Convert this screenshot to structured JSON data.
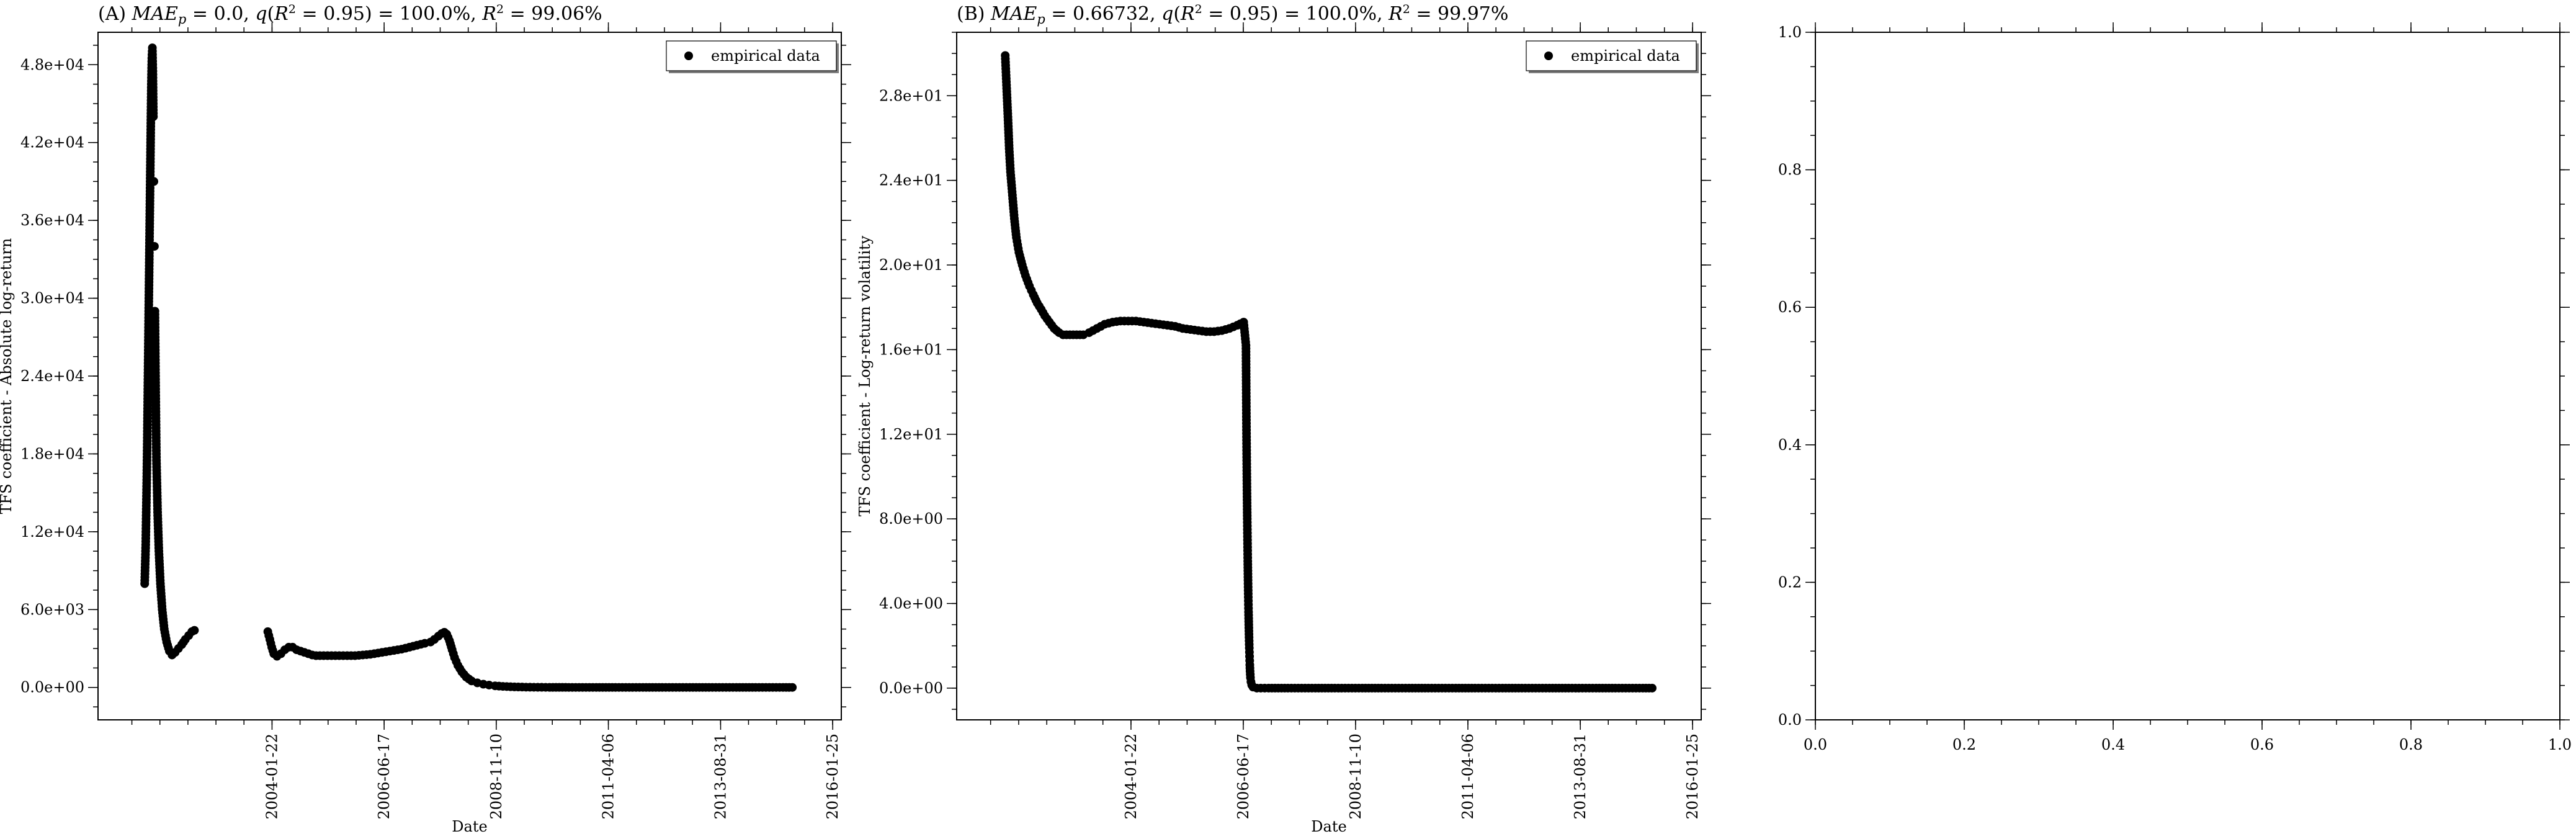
{
  "chart_data": [
    {
      "type": "scatter",
      "title": "(A) MAE_p = 0.0, q(R^2 = 0.95) = 100.0%, R^2 = 99.06%",
      "title_parts": [
        "(A) ",
        "MAE",
        "p",
        " = 0.0, ",
        "q",
        "(",
        "R",
        "2",
        " = 0.95) = 100.0%, ",
        "R",
        "2",
        " = 99.06%"
      ],
      "xlabel": "Date",
      "ylabel": "TFS coefficient - Absolute log-return",
      "x_axis": "date",
      "xlim": [
        "2000-05-01",
        "2016-04-01"
      ],
      "ylim": [
        -2500,
        50500
      ],
      "xticks": [
        "2004-01-22",
        "2006-06-17",
        "2008-11-10",
        "2011-04-06",
        "2013-08-31",
        "2016-01-25"
      ],
      "yticks": [
        0,
        6000,
        12000,
        18000,
        24000,
        30000,
        36000,
        42000,
        48000
      ],
      "ytick_labels": [
        "0.0e+00",
        "6.0e+03",
        "1.2e+04",
        "1.8e+04",
        "2.4e+04",
        "3.0e+04",
        "3.6e+04",
        "4.2e+04",
        "4.8e+04"
      ],
      "legend": {
        "label": "empirical data",
        "position": "top-right"
      },
      "grid": false,
      "series": [
        {
          "name": "empirical data",
          "color": "#000000",
          "points": [
            [
              "2001-05-01",
              8000
            ],
            [
              "2001-05-05",
              9500
            ],
            [
              "2001-05-09",
              11000
            ],
            [
              "2001-05-13",
              13500
            ],
            [
              "2001-05-17",
              16000
            ],
            [
              "2001-05-21",
              19000
            ],
            [
              "2001-05-25",
              22500
            ],
            [
              "2001-05-29",
              26000
            ],
            [
              "2001-06-02",
              29500
            ],
            [
              "2001-06-06",
              33000
            ],
            [
              "2001-06-10",
              36500
            ],
            [
              "2001-06-14",
              40000
            ],
            [
              "2001-06-18",
              43500
            ],
            [
              "2001-06-22",
              46500
            ],
            [
              "2001-06-26",
              48500
            ],
            [
              "2001-06-30",
              49300
            ],
            [
              "2001-07-04",
              47500
            ],
            [
              "2001-07-08",
              44000
            ],
            [
              "2001-07-12",
              39000
            ],
            [
              "2001-07-16",
              34000
            ],
            [
              "2001-07-20",
              29000
            ],
            [
              "2001-07-24",
              25000
            ],
            [
              "2001-07-28",
              21000
            ],
            [
              "2001-08-01",
              17500
            ],
            [
              "2001-08-10",
              13500
            ],
            [
              "2001-08-20",
              10500
            ],
            [
              "2001-09-01",
              8000
            ],
            [
              "2001-09-15",
              6000
            ],
            [
              "2001-10-01",
              4500
            ],
            [
              "2001-10-20",
              3500
            ],
            [
              "2001-11-10",
              2800
            ],
            [
              "2001-12-01",
              2500
            ],
            [
              "2001-12-25",
              2700
            ],
            [
              "2002-01-20",
              3000
            ],
            [
              "2002-02-15",
              3300
            ],
            [
              "2002-03-15",
              3700
            ],
            [
              "2002-04-10",
              4000
            ],
            [
              "2002-05-05",
              4300
            ],
            [
              "2002-05-25",
              4400
            ],
            [
              "2003-12-20",
              4300
            ],
            [
              "2004-01-05",
              3700
            ],
            [
              "2004-01-20",
              3100
            ],
            [
              "2004-02-05",
              2600
            ],
            [
              "2004-03-01",
              2400
            ],
            [
              "2004-04-01",
              2600
            ],
            [
              "2004-05-01",
              2900
            ],
            [
              "2004-06-01",
              3100
            ],
            [
              "2004-07-01",
              3100
            ],
            [
              "2004-08-01",
              2900
            ],
            [
              "2004-09-01",
              2800
            ],
            [
              "2004-10-01",
              2700
            ],
            [
              "2004-11-01",
              2600
            ],
            [
              "2004-12-01",
              2500
            ],
            [
              "2005-01-01",
              2450
            ],
            [
              "2005-03-01",
              2450
            ],
            [
              "2005-05-01",
              2450
            ],
            [
              "2005-07-01",
              2450
            ],
            [
              "2005-09-01",
              2450
            ],
            [
              "2005-11-01",
              2450
            ],
            [
              "2006-01-01",
              2500
            ],
            [
              "2006-03-01",
              2550
            ],
            [
              "2006-05-01",
              2650
            ],
            [
              "2006-07-01",
              2750
            ],
            [
              "2006-09-01",
              2850
            ],
            [
              "2006-11-01",
              2950
            ],
            [
              "2007-01-01",
              3100
            ],
            [
              "2007-03-01",
              3250
            ],
            [
              "2007-05-01",
              3400
            ],
            [
              "2007-06-15",
              3500
            ],
            [
              "2007-07-15",
              3700
            ],
            [
              "2007-08-15",
              3950
            ],
            [
              "2007-09-10",
              4150
            ],
            [
              "2007-10-01",
              4250
            ],
            [
              "2007-10-20",
              4100
            ],
            [
              "2007-11-10",
              3600
            ],
            [
              "2007-12-01",
              2900
            ],
            [
              "2007-12-20",
              2300
            ],
            [
              "2008-01-15",
              1700
            ],
            [
              "2008-02-15",
              1200
            ],
            [
              "2008-03-20",
              800
            ],
            [
              "2008-05-01",
              500
            ],
            [
              "2008-06-15",
              350
            ],
            [
              "2008-08-01",
              250
            ],
            [
              "2008-09-15",
              180
            ],
            [
              "2008-11-01",
              120
            ],
            [
              "2009-01-01",
              80
            ],
            [
              "2009-04-01",
              40
            ],
            [
              "2009-07-01",
              20
            ],
            [
              "2009-10-01",
              10
            ],
            [
              "2010-01-01",
              5
            ],
            [
              "2010-06-01",
              2
            ],
            [
              "2011-01-01",
              0
            ],
            [
              "2011-06-01",
              0
            ],
            [
              "2012-01-01",
              0
            ],
            [
              "2012-06-01",
              0
            ],
            [
              "2013-01-01",
              0
            ],
            [
              "2013-06-01",
              0
            ],
            [
              "2014-01-01",
              0
            ],
            [
              "2014-06-01",
              0
            ],
            [
              "2015-01-01",
              0
            ],
            [
              "2015-03-15",
              0
            ]
          ]
        }
      ]
    },
    {
      "type": "scatter",
      "title": "(B) MAE_p = 0.66732, q(R^2 = 0.95) = 100.0%, R^2 = 99.97%",
      "title_parts": [
        "(B) ",
        "MAE",
        "p",
        " = 0.66732, ",
        "q",
        "(",
        "R",
        "2",
        " = 0.95) = 100.0%, ",
        "R",
        "2",
        " = 99.97%"
      ],
      "xlabel": "Date",
      "ylabel": "TFS coefficient - Log-return volatility",
      "x_axis": "date",
      "xlim": [
        "2000-05-01",
        "2016-04-01"
      ],
      "ylim": [
        -1.5,
        31.0
      ],
      "xticks": [
        "2004-01-22",
        "2006-06-17",
        "2008-11-10",
        "2011-04-06",
        "2013-08-31",
        "2016-01-25"
      ],
      "yticks": [
        0,
        4,
        8,
        12,
        16,
        20,
        24,
        28
      ],
      "ytick_labels": [
        "0.0e+00",
        "4.0e+00",
        "8.0e+00",
        "1.2e+01",
        "1.6e+01",
        "2.0e+01",
        "2.4e+01",
        "2.8e+01"
      ],
      "legend": {
        "label": "empirical data",
        "position": "top-right"
      },
      "grid": false,
      "series": [
        {
          "name": "empirical data",
          "color": "#000000",
          "points": [
            [
              "2001-05-15",
              29.9
            ],
            [
              "2001-05-25",
              28.5
            ],
            [
              "2001-06-05",
              27.0
            ],
            [
              "2001-06-15",
              25.5
            ],
            [
              "2001-06-25",
              24.4
            ],
            [
              "2001-07-10",
              23.3
            ],
            [
              "2001-07-25",
              22.2
            ],
            [
              "2001-08-10",
              21.3
            ],
            [
              "2001-08-30",
              20.6
            ],
            [
              "2001-09-25",
              20.0
            ],
            [
              "2001-10-20",
              19.5
            ],
            [
              "2001-11-20",
              19.0
            ],
            [
              "2001-12-20",
              18.6
            ],
            [
              "2002-01-20",
              18.2
            ],
            [
              "2002-02-20",
              17.9
            ],
            [
              "2002-03-20",
              17.6
            ],
            [
              "2002-04-25",
              17.3
            ],
            [
              "2002-06-01",
              17.0
            ],
            [
              "2002-07-10",
              16.8
            ],
            [
              "2002-08-10",
              16.7
            ],
            [
              "2003-01-15",
              16.7
            ],
            [
              "2003-03-01",
              16.8
            ],
            [
              "2003-05-01",
              17.0
            ],
            [
              "2003-07-01",
              17.2
            ],
            [
              "2003-09-01",
              17.3
            ],
            [
              "2003-11-01",
              17.35
            ],
            [
              "2004-01-01",
              17.35
            ],
            [
              "2004-03-01",
              17.35
            ],
            [
              "2004-05-01",
              17.3
            ],
            [
              "2004-07-01",
              17.25
            ],
            [
              "2004-09-01",
              17.2
            ],
            [
              "2004-11-01",
              17.15
            ],
            [
              "2005-01-01",
              17.1
            ],
            [
              "2005-03-01",
              17.0
            ],
            [
              "2005-05-01",
              16.95
            ],
            [
              "2005-07-01",
              16.9
            ],
            [
              "2005-09-01",
              16.85
            ],
            [
              "2005-11-01",
              16.85
            ],
            [
              "2006-01-01",
              16.9
            ],
            [
              "2006-03-01",
              17.0
            ],
            [
              "2006-05-01",
              17.15
            ],
            [
              "2006-06-20",
              17.3
            ],
            [
              "2006-07-08",
              16.2
            ],
            [
              "2006-07-10",
              14.1
            ],
            [
              "2006-07-12",
              12.2
            ],
            [
              "2006-07-14",
              10.6
            ],
            [
              "2006-07-16",
              9.2
            ],
            [
              "2006-07-18",
              8.0
            ],
            [
              "2006-07-20",
              7.0
            ],
            [
              "2006-07-22",
              6.0
            ],
            [
              "2006-07-24",
              5.1
            ],
            [
              "2006-07-26",
              4.3
            ],
            [
              "2006-07-28",
              3.6
            ],
            [
              "2006-07-30",
              3.0
            ],
            [
              "2006-08-01",
              2.4
            ],
            [
              "2006-08-03",
              1.9
            ],
            [
              "2006-08-05",
              1.5
            ],
            [
              "2006-08-07",
              1.1
            ],
            [
              "2006-08-09",
              0.8
            ],
            [
              "2006-08-12",
              0.5
            ],
            [
              "2006-08-16",
              0.3
            ],
            [
              "2006-08-22",
              0.15
            ],
            [
              "2006-09-01",
              0.05
            ],
            [
              "2006-10-01",
              0.0
            ],
            [
              "2007-01-01",
              0.0
            ],
            [
              "2007-06-01",
              0.0
            ],
            [
              "2008-01-01",
              0.0
            ],
            [
              "2008-06-01",
              0.0
            ],
            [
              "2009-01-01",
              0.0
            ],
            [
              "2009-06-01",
              0.0
            ],
            [
              "2010-01-01",
              0.0
            ],
            [
              "2010-06-01",
              0.0
            ],
            [
              "2011-01-01",
              0.0
            ],
            [
              "2011-06-01",
              0.0
            ],
            [
              "2012-01-01",
              0.0
            ],
            [
              "2012-06-01",
              0.0
            ],
            [
              "2013-01-01",
              0.0
            ],
            [
              "2013-06-01",
              0.0
            ],
            [
              "2014-01-01",
              0.0
            ],
            [
              "2014-06-01",
              0.0
            ],
            [
              "2015-01-01",
              0.0
            ],
            [
              "2015-03-15",
              0.0
            ]
          ]
        }
      ]
    },
    {
      "type": "scatter",
      "title": "",
      "xlabel": "",
      "ylabel": "",
      "xlim": [
        0.0,
        1.0
      ],
      "ylim": [
        0.0,
        1.0
      ],
      "xticks": [
        0.0,
        0.2,
        0.4,
        0.6,
        0.8,
        1.0
      ],
      "xtick_labels": [
        "0.0",
        "0.2",
        "0.4",
        "0.6",
        "0.8",
        "1.0"
      ],
      "yticks": [
        0.0,
        0.2,
        0.4,
        0.6,
        0.8,
        1.0
      ],
      "ytick_labels": [
        "0.0",
        "0.2",
        "0.4",
        "0.6",
        "0.8",
        "1.0"
      ],
      "grid": false,
      "series": []
    }
  ]
}
